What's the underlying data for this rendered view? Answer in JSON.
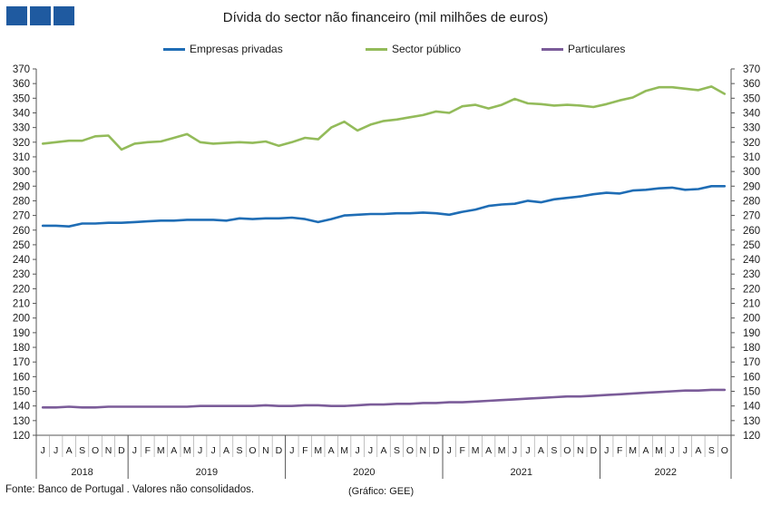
{
  "logo": {
    "color": "#1f5aa0",
    "blocks": 3
  },
  "chart_data": {
    "type": "line",
    "title": "Dívida do sector não financeiro (mil milhões de euros)",
    "ylim": [
      120,
      370
    ],
    "ytick_step": 10,
    "grid": false,
    "legend_placement": "top",
    "dual_y_axis": true,
    "month_labels": [
      "J",
      "J",
      "A",
      "S",
      "O",
      "N",
      "D",
      "J",
      "F",
      "M",
      "A",
      "M",
      "J",
      "J",
      "A",
      "S",
      "O",
      "N",
      "D",
      "J",
      "F",
      "M",
      "A",
      "M",
      "J",
      "J",
      "A",
      "S",
      "O",
      "N",
      "D",
      "J",
      "F",
      "M",
      "A",
      "M",
      "J",
      "J",
      "A",
      "S",
      "O",
      "N",
      "D",
      "J",
      "F",
      "M",
      "A",
      "M",
      "J",
      "J",
      "A",
      "S",
      "O"
    ],
    "year_groups": [
      {
        "label": "2018",
        "months": 7
      },
      {
        "label": "2019",
        "months": 12
      },
      {
        "label": "2020",
        "months": 12
      },
      {
        "label": "2021",
        "months": 12
      },
      {
        "label": "2022",
        "months": 10
      }
    ],
    "series": [
      {
        "name": "Empresas privadas",
        "color": "#1f6db5",
        "values": [
          263,
          263,
          262.5,
          264.5,
          264.5,
          265,
          265,
          265.5,
          266,
          266.5,
          266.5,
          267,
          267,
          267,
          266.5,
          268,
          267.5,
          268,
          268,
          268.5,
          267.5,
          265.5,
          267.5,
          270,
          270.5,
          271,
          271,
          271.5,
          271.5,
          272,
          271.5,
          270.5,
          272.5,
          274,
          276.5,
          277.5,
          278,
          280,
          279,
          281,
          282,
          283,
          284.5,
          285.5,
          285,
          287,
          287.5,
          288.5,
          289,
          287.5,
          288,
          290,
          290
        ]
      },
      {
        "name": "Sector público",
        "color": "#93bb5a",
        "values": [
          319,
          320,
          321,
          321,
          324,
          324.5,
          315,
          319,
          320,
          320.5,
          323,
          325.5,
          320,
          319,
          319.5,
          320,
          319.5,
          320.5,
          317.5,
          320,
          323,
          322,
          330,
          334,
          328,
          332,
          334.5,
          335.5,
          337,
          338.5,
          341,
          340,
          344.5,
          345.5,
          343,
          345.5,
          349.5,
          346.5,
          346,
          345,
          345.5,
          345,
          344,
          346,
          348.5,
          350.5,
          355,
          357.5,
          357.5,
          356.5,
          355.5,
          358,
          353
        ]
      },
      {
        "name": "Particulares",
        "color": "#7b5c99",
        "values": [
          139,
          139,
          139.5,
          139,
          139,
          139.5,
          139.5,
          139.5,
          139.5,
          139.5,
          139.5,
          139.5,
          140,
          140,
          140,
          140,
          140,
          140.5,
          140,
          140,
          140.5,
          140.5,
          140,
          140,
          140.5,
          141,
          141,
          141.5,
          141.5,
          142,
          142,
          142.5,
          142.5,
          143,
          143.5,
          144,
          144.5,
          145,
          145.5,
          146,
          146.5,
          146.5,
          147,
          147.5,
          148,
          148.5,
          149,
          149.5,
          150,
          150.5,
          150.5,
          151,
          151
        ]
      }
    ]
  },
  "source_text": "Fonte: Banco de Portugal . Valores não consolidados.",
  "credit_text": "(Gráfico: GEE)"
}
